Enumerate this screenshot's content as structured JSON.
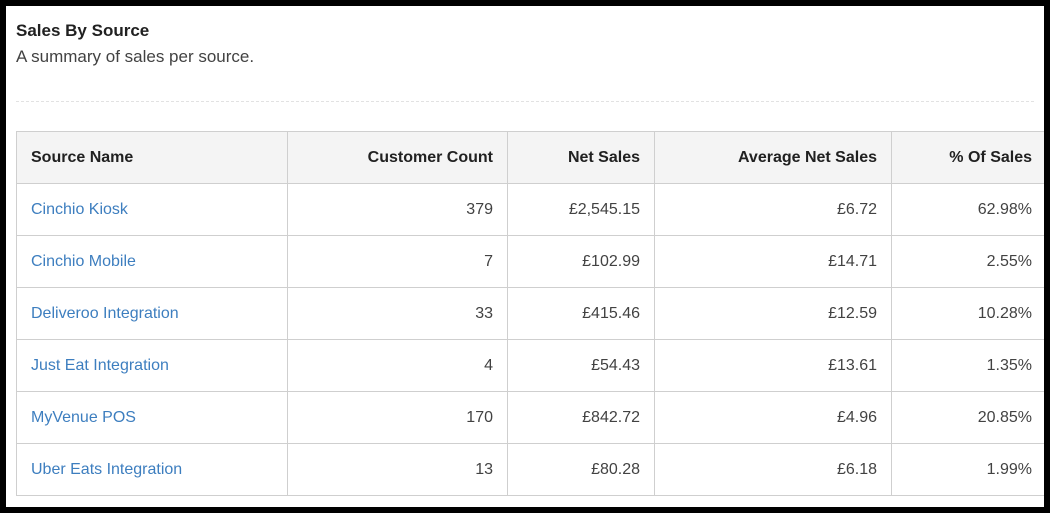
{
  "page": {
    "title": "Sales By Source",
    "subtitle": "A summary of sales per source."
  },
  "table": {
    "columns": [
      {
        "label": "Source Name",
        "align": "left"
      },
      {
        "label": "Customer Count",
        "align": "right"
      },
      {
        "label": "Net Sales",
        "align": "right"
      },
      {
        "label": "Average Net Sales",
        "align": "right"
      },
      {
        "label": "% Of Sales",
        "align": "right"
      }
    ],
    "rows": [
      {
        "source_name": "Cinchio Kiosk",
        "customer_count": "379",
        "net_sales": "£2,545.15",
        "average_net_sales": "£6.72",
        "percent_of_sales": "62.98%"
      },
      {
        "source_name": "Cinchio Mobile",
        "customer_count": "7",
        "net_sales": "£102.99",
        "average_net_sales": "£14.71",
        "percent_of_sales": "2.55%"
      },
      {
        "source_name": "Deliveroo Integration",
        "customer_count": "33",
        "net_sales": "£415.46",
        "average_net_sales": "£12.59",
        "percent_of_sales": "10.28%"
      },
      {
        "source_name": "Just Eat Integration",
        "customer_count": "4",
        "net_sales": "£54.43",
        "average_net_sales": "£13.61",
        "percent_of_sales": "1.35%"
      },
      {
        "source_name": "MyVenue POS",
        "customer_count": "170",
        "net_sales": "£842.72",
        "average_net_sales": "£4.96",
        "percent_of_sales": "20.85%"
      },
      {
        "source_name": "Uber Eats Integration",
        "customer_count": "13",
        "net_sales": "£80.28",
        "average_net_sales": "£6.18",
        "percent_of_sales": "1.99%"
      }
    ]
  },
  "colors": {
    "link_blue": "#3d7ebf",
    "header_background": "#f4f4f4",
    "table_border": "#cfcfcf",
    "text_primary": "#212121",
    "text_secondary": "#424242",
    "frame_border": "#000000"
  }
}
